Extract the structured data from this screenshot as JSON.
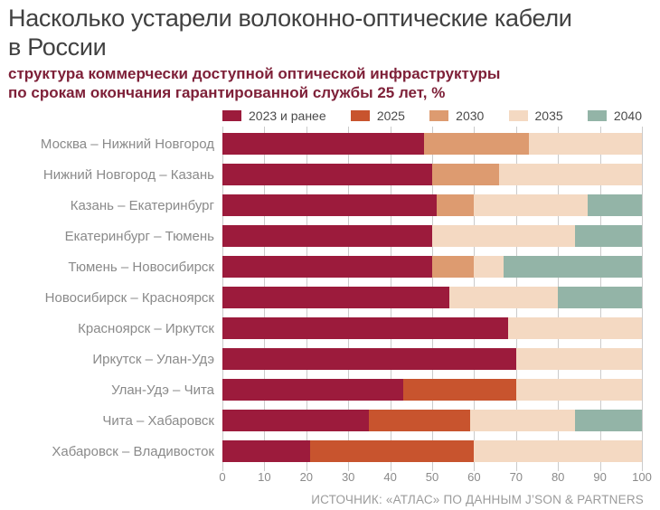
{
  "title": {
    "lines": [
      "Насколько устарели волоконно-оптические кабели",
      "в России"
    ]
  },
  "subtitle": {
    "lines": [
      "структура коммерчески доступной оптической инфраструктуры",
      "по срокам окончания гарантированной службы 25 лет, %"
    ]
  },
  "legend": [
    {
      "label": "2023 и ранее",
      "color": "#9c1b3c"
    },
    {
      "label": "2025",
      "color": "#c8542e"
    },
    {
      "label": "2030",
      "color": "#dd9b70"
    },
    {
      "label": "2035",
      "color": "#f4d9c2"
    },
    {
      "label": "2040",
      "color": "#93b4a7"
    }
  ],
  "chart_data": {
    "type": "bar",
    "orientation": "horizontal",
    "stacked": true,
    "grid": true,
    "legend_position": "top",
    "xlim": [
      0,
      100
    ],
    "x_ticks": [
      0,
      10,
      20,
      30,
      40,
      50,
      60,
      70,
      80,
      90,
      100
    ],
    "categories": [
      "Москва – Нижний Новгород",
      "Нижний Новгород – Казань",
      "Казань – Екатеринбург",
      "Екатеринбург – Тюмень",
      "Тюмень – Новосибирск",
      "Новосибирск – Красноярск",
      "Красноярск – Иркутск",
      "Иркутск – Улан-Удэ",
      "Улан-Удэ – Чита",
      "Чита – Хабаровск",
      "Хабаровск – Владивосток"
    ],
    "series": [
      {
        "name": "2023 и ранее",
        "color": "#9c1b3c",
        "values": [
          48,
          50,
          51,
          50,
          50,
          54,
          68,
          70,
          43,
          35,
          21
        ]
      },
      {
        "name": "2025",
        "color": "#c8542e",
        "values": [
          0,
          0,
          0,
          0,
          0,
          0,
          0,
          0,
          27,
          24,
          39
        ]
      },
      {
        "name": "2030",
        "color": "#dd9b70",
        "values": [
          25,
          16,
          9,
          0,
          10,
          0,
          0,
          0,
          0,
          0,
          0
        ]
      },
      {
        "name": "2035",
        "color": "#f4d9c2",
        "values": [
          27,
          34,
          27,
          34,
          7,
          26,
          32,
          30,
          30,
          25,
          40
        ]
      },
      {
        "name": "2040",
        "color": "#93b4a7",
        "values": [
          0,
          0,
          13,
          16,
          33,
          20,
          0,
          0,
          0,
          16,
          0
        ]
      }
    ]
  },
  "source": "ИСТОЧНИК: «АТЛАС» ПО ДАННЫМ J’SON & PARTNERS"
}
